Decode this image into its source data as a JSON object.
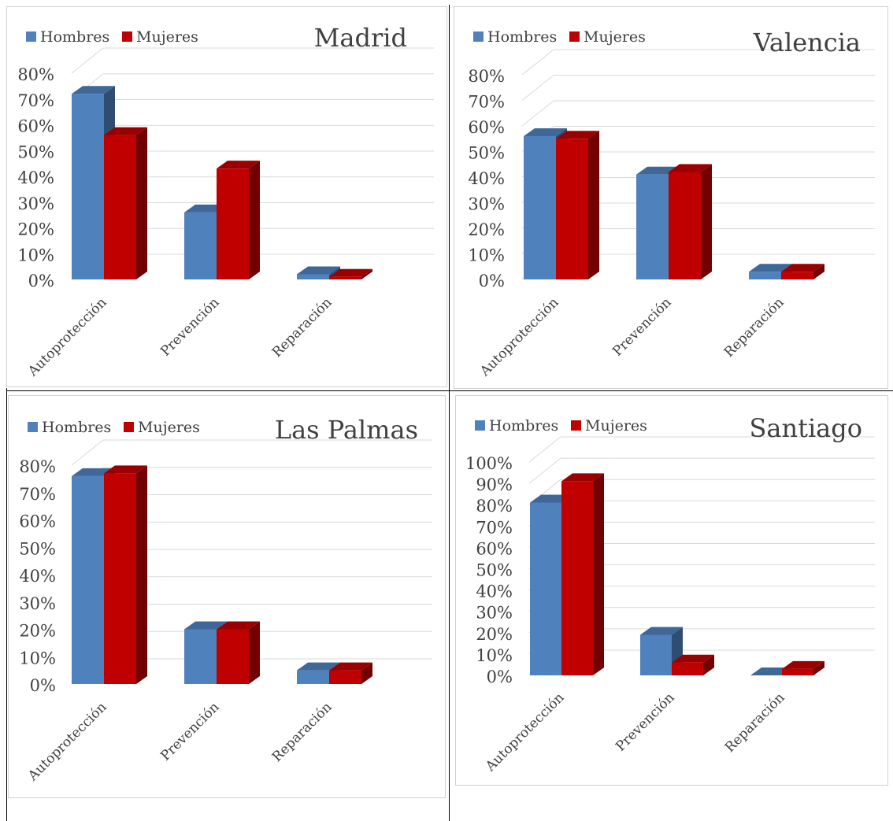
{
  "colors": {
    "hombres": "#4F81BD",
    "mujeres": "#C00000"
  },
  "chart_data": [
    {
      "type": "bar",
      "title": "Madrid",
      "categories": [
        "Autoprotección",
        "Prevención",
        "Reparación"
      ],
      "series": [
        {
          "name": "Hombres",
          "values": [
            72,
            26,
            2
          ]
        },
        {
          "name": "Mujeres",
          "values": [
            56,
            43,
            1
          ]
        }
      ],
      "yticks": [
        "0%",
        "10%",
        "20%",
        "30%",
        "40%",
        "50%",
        "60%",
        "70%",
        "80%"
      ],
      "ylim": [
        0,
        80
      ],
      "grid": true,
      "legend": "top-left"
    },
    {
      "type": "bar",
      "title": "Valencia",
      "categories": [
        "Autoprotección",
        "Prevención",
        "Reparación"
      ],
      "series": [
        {
          "name": "Hombres",
          "values": [
            56,
            41,
            3
          ]
        },
        {
          "name": "Mujeres",
          "values": [
            55,
            42,
            3
          ]
        }
      ],
      "yticks": [
        "0%",
        "10%",
        "20%",
        "30%",
        "40%",
        "50%",
        "60%",
        "70%",
        "80%"
      ],
      "ylim": [
        0,
        80
      ],
      "grid": true,
      "legend": "top-left"
    },
    {
      "type": "bar",
      "title": "Las Palmas",
      "categories": [
        "Autoprotección",
        "Prevención",
        "Reparación"
      ],
      "series": [
        {
          "name": "Hombres",
          "values": [
            76,
            20,
            5
          ]
        },
        {
          "name": "Mujeres",
          "values": [
            77,
            20,
            5
          ]
        }
      ],
      "yticks": [
        "0%",
        "10%",
        "20%",
        "30%",
        "40%",
        "50%",
        "60%",
        "70%",
        "80%"
      ],
      "ylim": [
        0,
        80
      ],
      "grid": true,
      "legend": "top-left"
    },
    {
      "type": "bar",
      "title": "Santiago",
      "categories": [
        "Autoprotección",
        "Prevención",
        "Reparación"
      ],
      "series": [
        {
          "name": "Hombres",
          "values": [
            81,
            19,
            0
          ]
        },
        {
          "name": "Mujeres",
          "values": [
            91,
            6,
            3
          ]
        }
      ],
      "yticks": [
        "0%",
        "10%",
        "20%",
        "30%",
        "40%",
        "50%",
        "60%",
        "70%",
        "80%",
        "90%",
        "100%"
      ],
      "ylim": [
        0,
        100
      ],
      "grid": true,
      "legend": "top-left"
    }
  ]
}
